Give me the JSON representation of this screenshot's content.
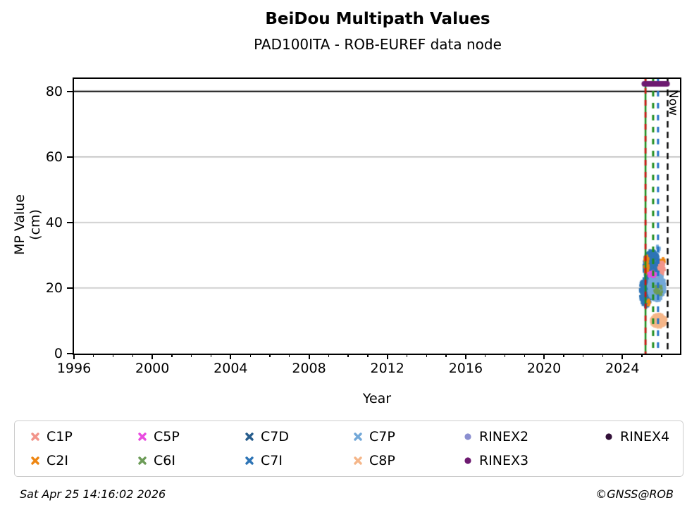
{
  "title": "BeiDou Multipath Values",
  "subtitle": "PAD100ITA - ROB-EUREF data node",
  "footer": {
    "timestamp": "Sat Apr 25 14:16:02 2026",
    "credit": "©GNSS@ROB"
  },
  "chart_data": {
    "type": "scatter",
    "title": "BeiDou Multipath Values",
    "subtitle": "PAD100ITA - ROB-EUREF data node",
    "xlabel": "Year",
    "ylabel": "MP Value (cm)",
    "xlim": [
      1996,
      2026.94
    ],
    "ylim": [
      0,
      83.8
    ],
    "x_major_ticks": [
      1996,
      2000,
      2004,
      2008,
      2012,
      2016,
      2020,
      2024
    ],
    "x_minor_step": 1,
    "y_ticks": [
      0,
      20,
      40,
      60,
      80
    ],
    "gridlines_y": [
      20,
      40,
      60
    ],
    "grid_color": "#b4b4b4",
    "legend_position": "bottom",
    "threshold_line": {
      "value": 80,
      "color": "#000000",
      "width": 2
    },
    "now_line": {
      "year": 2026.31,
      "label": "Now",
      "color": "#000000",
      "style": "dashed"
    },
    "event_lines": [
      {
        "name": "green-solid-event",
        "year": 2025.18,
        "color": "#1e8c1e",
        "style": "solid",
        "width": 2.6
      },
      {
        "name": "red-dashed-event",
        "year": 2025.18,
        "color": "#d01010",
        "style": "dashed",
        "width": 2.6
      },
      {
        "name": "green-dashed-event",
        "year": 2025.57,
        "color": "#1e8c1e",
        "style": "dashed",
        "width": 3
      },
      {
        "name": "blue-dashed-event",
        "year": 2025.82,
        "color": "#2472c8",
        "style": "dashed",
        "width": 3
      }
    ],
    "rinex3_bar": {
      "year_start": 2025.12,
      "year_end": 2026.28,
      "value": 82.3,
      "color": "#6d1a70",
      "thickness": 8
    },
    "series": [
      {
        "name": "C7D",
        "color": "#275d8d",
        "clusters": [
          {
            "cx": 2025.45,
            "cy": 25.0,
            "rx": 0.3,
            "ry": 3.5,
            "n": 70
          }
        ]
      },
      {
        "name": "C7I",
        "color": "#2e75b6",
        "clusters": [
          {
            "cx": 2025.5,
            "cy": 26.8,
            "rx": 0.42,
            "ry": 4.8,
            "n": 500
          },
          {
            "cx": 2025.2,
            "cy": 19.0,
            "rx": 0.3,
            "ry": 5.0,
            "n": 280
          }
        ]
      },
      {
        "name": "C2I",
        "color": "#ee8612",
        "clusters": [
          {
            "cx": 2025.22,
            "cy": 27.0,
            "rx": 0.12,
            "ry": 3.0,
            "n": 50
          },
          {
            "cx": 2025.35,
            "cy": 15.5,
            "rx": 0.1,
            "ry": 1.0,
            "n": 10
          },
          {
            "cx": 2026.05,
            "cy": 28.0,
            "rx": 0.1,
            "ry": 1.2,
            "n": 12
          }
        ]
      },
      {
        "name": "C1P",
        "color": "#f2958b",
        "clusters": [
          {
            "cx": 2026.0,
            "cy": 26.0,
            "rx": 0.16,
            "ry": 2.2,
            "n": 40
          },
          {
            "cx": 2025.55,
            "cy": 22.5,
            "rx": 0.2,
            "ry": 1.5,
            "n": 15
          }
        ]
      },
      {
        "name": "C7P",
        "color": "#73a8d8",
        "clusters": [
          {
            "cx": 2025.75,
            "cy": 20.3,
            "rx": 0.45,
            "ry": 4.3,
            "n": 340
          },
          {
            "cx": 2025.83,
            "cy": 32.0,
            "rx": 0.08,
            "ry": 1.0,
            "n": 14
          }
        ]
      },
      {
        "name": "C5P",
        "color": "#e94ce0",
        "clusters": [
          {
            "cx": 2025.55,
            "cy": 24.2,
            "rx": 0.25,
            "ry": 0.9,
            "n": 30
          }
        ]
      },
      {
        "name": "C6I",
        "color": "#6d9c58",
        "clusters": [
          {
            "cx": 2025.85,
            "cy": 19.3,
            "rx": 0.22,
            "ry": 1.6,
            "n": 35
          }
        ]
      },
      {
        "name": "C8P",
        "color": "#f5b689",
        "clusters": [
          {
            "cx": 2025.85,
            "cy": 10.0,
            "rx": 0.4,
            "ry": 2.1,
            "n": 220
          }
        ]
      }
    ],
    "legend": [
      {
        "label": "C1P",
        "color": "#f2958b",
        "marker": "x"
      },
      {
        "label": "C5P",
        "color": "#e94ce0",
        "marker": "x"
      },
      {
        "label": "C7D",
        "color": "#275d8d",
        "marker": "x"
      },
      {
        "label": "C7P",
        "color": "#73a8d8",
        "marker": "x"
      },
      {
        "label": "RINEX2",
        "color": "#8b8fd0",
        "marker": "dot"
      },
      {
        "label": "RINEX4",
        "color": "#321038",
        "marker": "dot"
      },
      {
        "label": "C2I",
        "color": "#ee8612",
        "marker": "x"
      },
      {
        "label": "C6I",
        "color": "#6d9c58",
        "marker": "x"
      },
      {
        "label": "C7I",
        "color": "#2e75b6",
        "marker": "x"
      },
      {
        "label": "C8P",
        "color": "#f5b689",
        "marker": "x"
      },
      {
        "label": "RINEX3",
        "color": "#6d1a70",
        "marker": "dot"
      }
    ]
  }
}
